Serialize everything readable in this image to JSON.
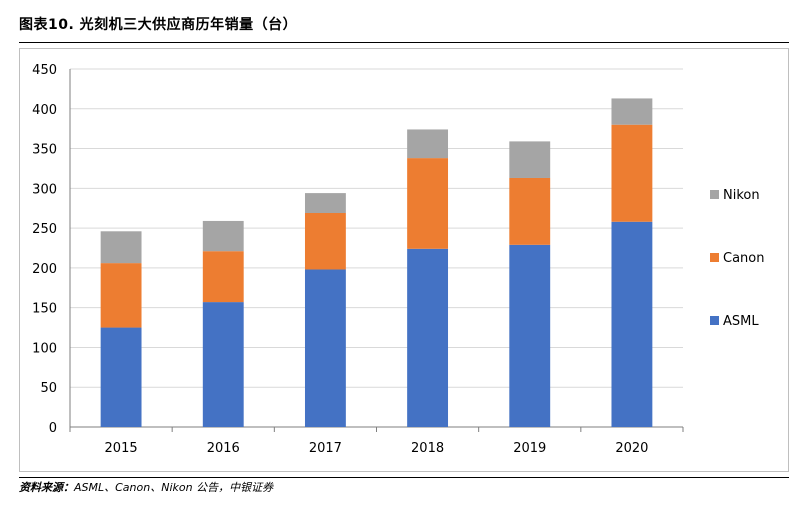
{
  "figure": {
    "title": "图表10. 光刻机三大供应商历年销量（台）",
    "source_label": "资料来源：",
    "source_text": "ASML、Canon、Nikon 公告，中银证券"
  },
  "chart_data": {
    "type": "bar",
    "stacked": true,
    "categories": [
      "2015",
      "2016",
      "2017",
      "2018",
      "2019",
      "2020"
    ],
    "series": [
      {
        "name": "ASML",
        "color": "#4472C4",
        "values": [
          125,
          157,
          198,
          224,
          229,
          258
        ]
      },
      {
        "name": "Canon",
        "color": "#ED7D31",
        "values": [
          81,
          64,
          71,
          114,
          84,
          122
        ]
      },
      {
        "name": "Nikon",
        "color": "#A5A5A5",
        "values": [
          40,
          38,
          25,
          36,
          46,
          33
        ]
      }
    ],
    "title": "",
    "xlabel": "",
    "ylabel": "",
    "ylim": [
      0,
      450
    ],
    "yticks": [
      "0",
      "50",
      "100",
      "150",
      "200",
      "250",
      "300",
      "350",
      "400",
      "450"
    ],
    "grid": true,
    "legend_position": "right"
  }
}
